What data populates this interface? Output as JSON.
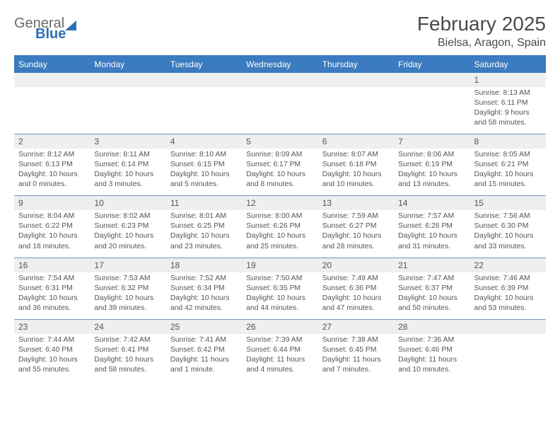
{
  "logo": {
    "line1": "General",
    "line2": "Blue"
  },
  "header": {
    "month_title": "February 2025",
    "location": "Bielsa, Aragon, Spain"
  },
  "colors": {
    "header_bar": "#3b7bbf",
    "daynum_bg": "#efefef",
    "text": "#555555",
    "divider": "#7a94b0",
    "logo_blue": "#2f6fb3"
  },
  "dow": [
    "Sunday",
    "Monday",
    "Tuesday",
    "Wednesday",
    "Thursday",
    "Friday",
    "Saturday"
  ],
  "weeks": [
    {
      "nums": [
        "",
        "",
        "",
        "",
        "",
        "",
        "1"
      ],
      "cells": [
        {},
        {},
        {},
        {},
        {},
        {},
        {
          "sunrise": "Sunrise: 8:13 AM",
          "sunset": "Sunset: 6:11 PM",
          "daylight": "Daylight: 9 hours and 58 minutes."
        }
      ]
    },
    {
      "nums": [
        "2",
        "3",
        "4",
        "5",
        "6",
        "7",
        "8"
      ],
      "cells": [
        {
          "sunrise": "Sunrise: 8:12 AM",
          "sunset": "Sunset: 6:13 PM",
          "daylight": "Daylight: 10 hours and 0 minutes."
        },
        {
          "sunrise": "Sunrise: 8:11 AM",
          "sunset": "Sunset: 6:14 PM",
          "daylight": "Daylight: 10 hours and 3 minutes."
        },
        {
          "sunrise": "Sunrise: 8:10 AM",
          "sunset": "Sunset: 6:15 PM",
          "daylight": "Daylight: 10 hours and 5 minutes."
        },
        {
          "sunrise": "Sunrise: 8:09 AM",
          "sunset": "Sunset: 6:17 PM",
          "daylight": "Daylight: 10 hours and 8 minutes."
        },
        {
          "sunrise": "Sunrise: 8:07 AM",
          "sunset": "Sunset: 6:18 PM",
          "daylight": "Daylight: 10 hours and 10 minutes."
        },
        {
          "sunrise": "Sunrise: 8:06 AM",
          "sunset": "Sunset: 6:19 PM",
          "daylight": "Daylight: 10 hours and 13 minutes."
        },
        {
          "sunrise": "Sunrise: 8:05 AM",
          "sunset": "Sunset: 6:21 PM",
          "daylight": "Daylight: 10 hours and 15 minutes."
        }
      ]
    },
    {
      "nums": [
        "9",
        "10",
        "11",
        "12",
        "13",
        "14",
        "15"
      ],
      "cells": [
        {
          "sunrise": "Sunrise: 8:04 AM",
          "sunset": "Sunset: 6:22 PM",
          "daylight": "Daylight: 10 hours and 18 minutes."
        },
        {
          "sunrise": "Sunrise: 8:02 AM",
          "sunset": "Sunset: 6:23 PM",
          "daylight": "Daylight: 10 hours and 20 minutes."
        },
        {
          "sunrise": "Sunrise: 8:01 AM",
          "sunset": "Sunset: 6:25 PM",
          "daylight": "Daylight: 10 hours and 23 minutes."
        },
        {
          "sunrise": "Sunrise: 8:00 AM",
          "sunset": "Sunset: 6:26 PM",
          "daylight": "Daylight: 10 hours and 25 minutes."
        },
        {
          "sunrise": "Sunrise: 7:59 AM",
          "sunset": "Sunset: 6:27 PM",
          "daylight": "Daylight: 10 hours and 28 minutes."
        },
        {
          "sunrise": "Sunrise: 7:57 AM",
          "sunset": "Sunset: 6:28 PM",
          "daylight": "Daylight: 10 hours and 31 minutes."
        },
        {
          "sunrise": "Sunrise: 7:56 AM",
          "sunset": "Sunset: 6:30 PM",
          "daylight": "Daylight: 10 hours and 33 minutes."
        }
      ]
    },
    {
      "nums": [
        "16",
        "17",
        "18",
        "19",
        "20",
        "21",
        "22"
      ],
      "cells": [
        {
          "sunrise": "Sunrise: 7:54 AM",
          "sunset": "Sunset: 6:31 PM",
          "daylight": "Daylight: 10 hours and 36 minutes."
        },
        {
          "sunrise": "Sunrise: 7:53 AM",
          "sunset": "Sunset: 6:32 PM",
          "daylight": "Daylight: 10 hours and 39 minutes."
        },
        {
          "sunrise": "Sunrise: 7:52 AM",
          "sunset": "Sunset: 6:34 PM",
          "daylight": "Daylight: 10 hours and 42 minutes."
        },
        {
          "sunrise": "Sunrise: 7:50 AM",
          "sunset": "Sunset: 6:35 PM",
          "daylight": "Daylight: 10 hours and 44 minutes."
        },
        {
          "sunrise": "Sunrise: 7:49 AM",
          "sunset": "Sunset: 6:36 PM",
          "daylight": "Daylight: 10 hours and 47 minutes."
        },
        {
          "sunrise": "Sunrise: 7:47 AM",
          "sunset": "Sunset: 6:37 PM",
          "daylight": "Daylight: 10 hours and 50 minutes."
        },
        {
          "sunrise": "Sunrise: 7:46 AM",
          "sunset": "Sunset: 6:39 PM",
          "daylight": "Daylight: 10 hours and 53 minutes."
        }
      ]
    },
    {
      "nums": [
        "23",
        "24",
        "25",
        "26",
        "27",
        "28",
        ""
      ],
      "cells": [
        {
          "sunrise": "Sunrise: 7:44 AM",
          "sunset": "Sunset: 6:40 PM",
          "daylight": "Daylight: 10 hours and 55 minutes."
        },
        {
          "sunrise": "Sunrise: 7:42 AM",
          "sunset": "Sunset: 6:41 PM",
          "daylight": "Daylight: 10 hours and 58 minutes."
        },
        {
          "sunrise": "Sunrise: 7:41 AM",
          "sunset": "Sunset: 6:42 PM",
          "daylight": "Daylight: 11 hours and 1 minute."
        },
        {
          "sunrise": "Sunrise: 7:39 AM",
          "sunset": "Sunset: 6:44 PM",
          "daylight": "Daylight: 11 hours and 4 minutes."
        },
        {
          "sunrise": "Sunrise: 7:38 AM",
          "sunset": "Sunset: 6:45 PM",
          "daylight": "Daylight: 11 hours and 7 minutes."
        },
        {
          "sunrise": "Sunrise: 7:36 AM",
          "sunset": "Sunset: 6:46 PM",
          "daylight": "Daylight: 11 hours and 10 minutes."
        },
        {}
      ]
    }
  ]
}
